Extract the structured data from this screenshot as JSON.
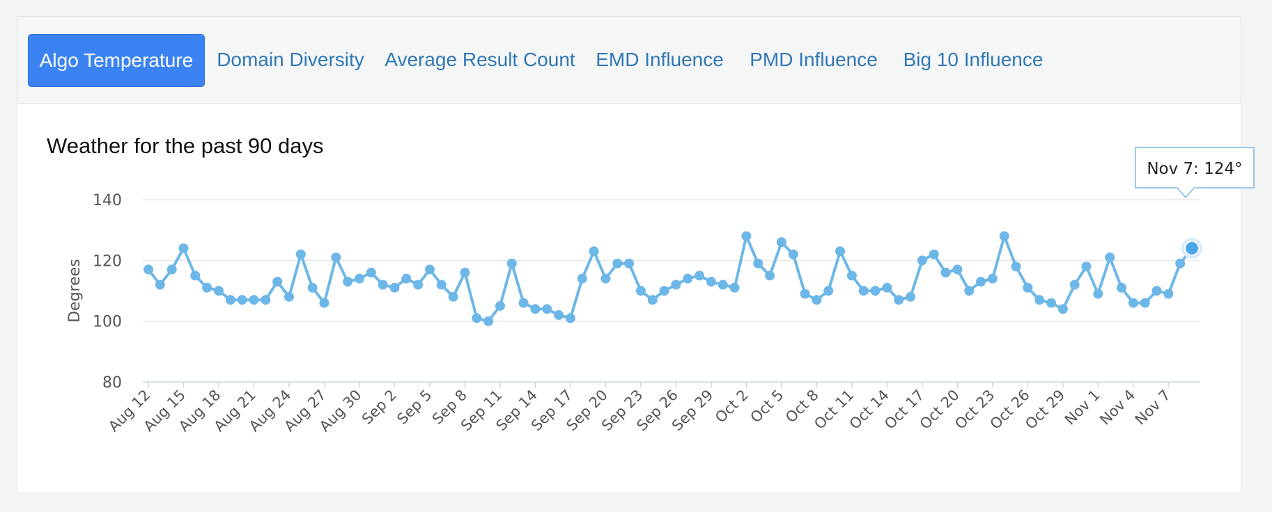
{
  "tabs": [
    {
      "label": "Algo Temperature",
      "active": true
    },
    {
      "label": "Domain Diversity",
      "active": false
    },
    {
      "label": "Average Result Count",
      "active": false
    },
    {
      "label": "EMD Influence",
      "active": false
    },
    {
      "label": "PMD Influence",
      "active": false
    },
    {
      "label": "Big 10 Influence",
      "active": false
    }
  ],
  "chart_title": "Weather for the past 90 days",
  "tooltip": {
    "text": "Nov 7: 124°",
    "point_label": "Nov 7"
  },
  "colors": {
    "line": "#6db7e8",
    "active_tab": "#3b83f2",
    "tab_text": "#2f78b8",
    "highlight": "#4aa8e8"
  },
  "chart_data": {
    "type": "line",
    "title": "Weather for the past 90 days",
    "xlabel": "",
    "ylabel": "Degrees",
    "ylim": [
      80,
      140
    ],
    "yticks": [
      80,
      100,
      120,
      140
    ],
    "grid": true,
    "x_tick_labels": [
      "Aug 12",
      "Aug 15",
      "Aug 18",
      "Aug 21",
      "Aug 24",
      "Aug 27",
      "Aug 30",
      "Sep 2",
      "Sep 5",
      "Sep 8",
      "Sep 11",
      "Sep 14",
      "Sep 17",
      "Sep 20",
      "Sep 23",
      "Sep 26",
      "Sep 29",
      "Oct 2",
      "Oct 5",
      "Oct 8",
      "Oct 11",
      "Oct 14",
      "Oct 17",
      "Oct 20",
      "Oct 23",
      "Oct 26",
      "Oct 29",
      "Nov 1",
      "Nov 4",
      "Nov 7"
    ],
    "series": [
      {
        "values": [
          117,
          112,
          117,
          124,
          115,
          111,
          110,
          107,
          107,
          107,
          107,
          113,
          108,
          122,
          111,
          106,
          121,
          113,
          114,
          116,
          112,
          111,
          114,
          112,
          117,
          112,
          108,
          116,
          101,
          100,
          105,
          119,
          106,
          104,
          104,
          102,
          101,
          114,
          123,
          114,
          119,
          119,
          110,
          107,
          110,
          112,
          114,
          115,
          113,
          112,
          111,
          128,
          119,
          115,
          126,
          122,
          109,
          107,
          110,
          123,
          115,
          110,
          110,
          111,
          107,
          108,
          120,
          122,
          116,
          117,
          110,
          113,
          114,
          128,
          118,
          111,
          107,
          106,
          104,
          112,
          118,
          109,
          121,
          111,
          106,
          106,
          110,
          109,
          119,
          124
        ]
      }
    ]
  }
}
